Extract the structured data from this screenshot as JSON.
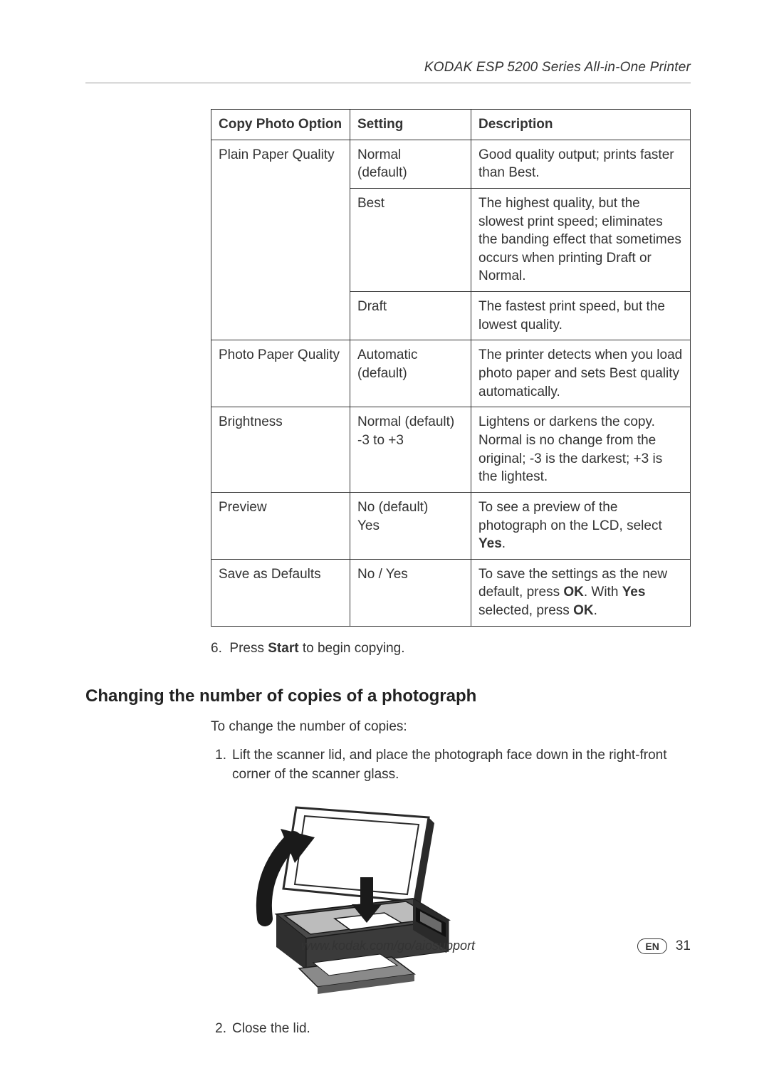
{
  "header": {
    "title": "KODAK ESP 5200 Series All-in-One Printer"
  },
  "table": {
    "headers": [
      "Copy Photo Option",
      "Setting",
      "Description"
    ],
    "rows": [
      {
        "option": "Plain Paper Quality",
        "setting": "Normal (default)",
        "description": "Good quality output; prints faster than Best.",
        "rowspanStart": true
      },
      {
        "option": "",
        "setting": "Best",
        "description": "The highest quality, but the slowest print speed; eliminates the banding effect that sometimes occurs when printing Draft or Normal."
      },
      {
        "option": "",
        "setting": "Draft",
        "description": "The fastest print speed, but the lowest quality."
      },
      {
        "option": "Photo Paper Quality",
        "setting": "Automatic (default)",
        "description": "The printer detects when you load photo paper and sets Best quality automatically."
      },
      {
        "option": "Brightness",
        "setting": "Normal (default)\n-3 to +3",
        "description": "Lightens or darkens the copy. Normal is no change from the original; -3 is the darkest; +3 is the lightest."
      },
      {
        "option": "Preview",
        "setting": "No (default)\nYes",
        "description_html": "To see a preview of the photograph on the LCD, select <b>Yes</b>."
      },
      {
        "option": "Save as Defaults",
        "setting": "No / Yes",
        "description_html": "To save the settings as the new default, press <b>OK</b>. With <b>Yes</b> selected, press <b>OK</b>."
      }
    ]
  },
  "step6_html": "6.&nbsp; Press <b>Start</b> to begin copying.",
  "section_heading": "Changing the number of copies of a photograph",
  "intro": "To change the number of copies:",
  "steps": [
    {
      "num": "1.",
      "text": "Lift the scanner lid, and place the photograph face down in the right-front corner of the scanner glass."
    },
    {
      "num": "2.",
      "text": "Close the lid."
    }
  ],
  "footer": {
    "url": "www.kodak.com/go/aiosupport",
    "lang": "EN",
    "page": "31"
  },
  "illustration": {
    "printer_body": "#3b3b3b",
    "printer_body_light": "#5a5a5a",
    "lid_fill": "#ffffff",
    "lid_stroke": "#2a2a2a",
    "arrow": "#1a1a1a",
    "paper": "#ffffff",
    "tray": "#888888"
  }
}
